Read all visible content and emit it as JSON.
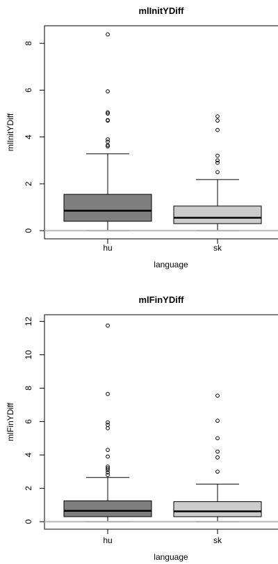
{
  "colors": {
    "background": "#ffffff",
    "axis": "#000000",
    "hu_fill": "#7f7f7f",
    "sk_fill": "#cccccc",
    "zero_line": "#bebebe"
  },
  "chart_data": [
    {
      "type": "boxplot",
      "title": "mlInitYDiff",
      "xlabel": "language",
      "ylabel": "mlInitYDiff",
      "categories": [
        "hu",
        "sk"
      ],
      "ylim": [
        -0.35,
        8.75
      ],
      "yticks": [
        0,
        2,
        4,
        6,
        8
      ],
      "reference_line_y": 0,
      "grid": false,
      "boxes": [
        {
          "category": "hu",
          "whisker_low": 0.0,
          "q1": 0.4,
          "median": 0.85,
          "q3": 1.55,
          "whisker_high": 3.28,
          "outliers": [
            3.6,
            3.65,
            3.8,
            3.9,
            4.7,
            4.72,
            5.0,
            5.05,
            5.95,
            8.38
          ]
        },
        {
          "category": "sk",
          "whisker_low": 0.0,
          "q1": 0.3,
          "median": 0.55,
          "q3": 1.05,
          "whisker_high": 2.18,
          "outliers": [
            2.5,
            2.9,
            3.0,
            3.2,
            4.3,
            4.7,
            4.88
          ]
        }
      ]
    },
    {
      "type": "boxplot",
      "title": "mlFinYDiff",
      "xlabel": "language",
      "ylabel": "mlFinYDiff",
      "categories": [
        "hu",
        "sk"
      ],
      "ylim": [
        -0.45,
        12.4
      ],
      "yticks": [
        0,
        2,
        4,
        6,
        8,
        10,
        12
      ],
      "reference_line_y": 0,
      "grid": false,
      "boxes": [
        {
          "category": "hu",
          "whisker_low": 0.0,
          "q1": 0.3,
          "median": 0.65,
          "q3": 1.25,
          "whisker_high": 2.65,
          "outliers": [
            2.8,
            2.95,
            3.1,
            3.2,
            3.3,
            3.9,
            4.3,
            5.6,
            5.8,
            5.95,
            7.65,
            11.75
          ]
        },
        {
          "category": "sk",
          "whisker_low": 0.0,
          "q1": 0.3,
          "median": 0.62,
          "q3": 1.2,
          "whisker_high": 2.25,
          "outliers": [
            3.0,
            3.85,
            4.2,
            5.0,
            6.05,
            7.55
          ]
        }
      ]
    }
  ]
}
